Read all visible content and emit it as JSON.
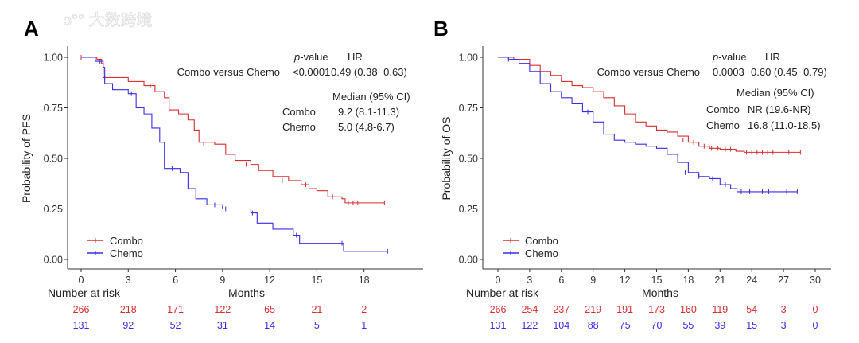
{
  "colors": {
    "combo": "#d62f2f",
    "chemo": "#3a2ee6",
    "axis": "#333333"
  },
  "watermark": "大数跨境",
  "chart_data": [
    {
      "type": "line",
      "subtype": "kaplan-meier",
      "panel_label": "A",
      "ylabel": "Probability of PFS",
      "xlabel": "Months",
      "xticks": [
        "0",
        "3",
        "6",
        "9",
        "12",
        "15",
        "18"
      ],
      "xlim": [
        0,
        21
      ],
      "yticks": [
        "0.00",
        "0.25",
        "0.50",
        "0.75",
        "1.00"
      ],
      "ylim": [
        0,
        1
      ],
      "legend": {
        "placement": "bottom-left",
        "entries": [
          "Combo",
          "Chemo"
        ]
      },
      "annotation": {
        "pvalue_header_prefix": "p",
        "pvalue_header_suffix": "-value",
        "hr_header": "HR",
        "comparison": "Combo versus Chemo",
        "pvalue": "<0.0001",
        "hr": "0.49 (0.38−0.63)",
        "median_header": "Median (95% CI)",
        "rows": [
          {
            "group": "Combo",
            "median": "9.2 (8.1-11.3)"
          },
          {
            "group": "Chemo",
            "median": "5.0 (4.8-6.7)"
          }
        ]
      },
      "risk_table": {
        "title": "Number at risk",
        "combo": [
          "266",
          "218",
          "171",
          "122",
          "65",
          "21",
          "2"
        ],
        "chemo": [
          "131",
          "92",
          "52",
          "31",
          "14",
          "5",
          "1"
        ]
      },
      "series": [
        {
          "name": "Combo",
          "points": [
            [
              0,
              1
            ],
            [
              1.0,
              0.99
            ],
            [
              1.3,
              0.97
            ],
            [
              1.4,
              0.9
            ],
            [
              3,
              0.88
            ],
            [
              4,
              0.86
            ],
            [
              4.7,
              0.83
            ],
            [
              5.3,
              0.8
            ],
            [
              5.6,
              0.74
            ],
            [
              6.2,
              0.72
            ],
            [
              6.8,
              0.69
            ],
            [
              7.2,
              0.64
            ],
            [
              7.5,
              0.58
            ],
            [
              8.5,
              0.57
            ],
            [
              9.2,
              0.52
            ],
            [
              9.8,
              0.49
            ],
            [
              10.8,
              0.47
            ],
            [
              11.3,
              0.44
            ],
            [
              12.2,
              0.41
            ],
            [
              13.2,
              0.39
            ],
            [
              14.0,
              0.37
            ],
            [
              14.5,
              0.35
            ],
            [
              15.0,
              0.34
            ],
            [
              15.7,
              0.31
            ],
            [
              16.6,
              0.3
            ],
            [
              16.8,
              0.28
            ],
            [
              19.3,
              0.28
            ]
          ],
          "censored": [
            [
              0,
              1
            ],
            [
              1.4,
              0.93
            ],
            [
              4.4,
              0.86
            ],
            [
              7.8,
              0.57
            ],
            [
              10.5,
              0.47
            ],
            [
              12.8,
              0.39
            ],
            [
              14.3,
              0.37
            ],
            [
              16.0,
              0.31
            ],
            [
              17.0,
              0.28
            ],
            [
              17.3,
              0.28
            ],
            [
              17.6,
              0.28
            ],
            [
              19.3,
              0.28
            ]
          ]
        },
        {
          "name": "Chemo",
          "points": [
            [
              0,
              1
            ],
            [
              0.9,
              0.98
            ],
            [
              1.4,
              0.95
            ],
            [
              1.5,
              0.87
            ],
            [
              2.0,
              0.84
            ],
            [
              3.0,
              0.82
            ],
            [
              3.5,
              0.75
            ],
            [
              4.0,
              0.72
            ],
            [
              4.5,
              0.65
            ],
            [
              5.0,
              0.58
            ],
            [
              5.3,
              0.45
            ],
            [
              6.3,
              0.43
            ],
            [
              6.8,
              0.35
            ],
            [
              7.3,
              0.3
            ],
            [
              8.0,
              0.27
            ],
            [
              9.0,
              0.25
            ],
            [
              10.8,
              0.23
            ],
            [
              11.2,
              0.18
            ],
            [
              12.2,
              0.15
            ],
            [
              13.5,
              0.12
            ],
            [
              13.9,
              0.08
            ],
            [
              16.6,
              0.08
            ],
            [
              16.7,
              0.04
            ],
            [
              19.5,
              0.04
            ]
          ],
          "censored": [
            [
              1.2,
              0.98
            ],
            [
              1.5,
              0.9
            ],
            [
              3.2,
              0.82
            ],
            [
              5.8,
              0.45
            ],
            [
              8.5,
              0.27
            ],
            [
              9.2,
              0.25
            ],
            [
              10.9,
              0.23
            ],
            [
              13.7,
              0.12
            ],
            [
              16.6,
              0.08
            ],
            [
              19.5,
              0.04
            ]
          ]
        }
      ]
    },
    {
      "type": "line",
      "subtype": "kaplan-meier",
      "panel_label": "B",
      "ylabel": "Probability of OS",
      "xlabel": "Months",
      "xticks": [
        "0",
        "3",
        "6",
        "9",
        "12",
        "15",
        "18",
        "21",
        "24",
        "27",
        "30"
      ],
      "xlim": [
        0,
        31.5
      ],
      "yticks": [
        "0.00",
        "0.25",
        "0.50",
        "0.75",
        "1.00"
      ],
      "ylim": [
        0,
        1
      ],
      "legend": {
        "placement": "bottom-left",
        "entries": [
          "Combo",
          "Chemo"
        ]
      },
      "annotation": {
        "pvalue_header_prefix": "p",
        "pvalue_header_suffix": "-value",
        "hr_header": "HR",
        "comparison": "Combo versus Chemo",
        "pvalue": "0.0003",
        "hr": "0.60 (0.45−0.79)",
        "median_header": "Median (95% CI)",
        "rows": [
          {
            "group": "Combo",
            "median": "NR (19.6-NR)"
          },
          {
            "group": "Chemo",
            "median": "16.8 (11.0-18.5)"
          }
        ]
      },
      "risk_table": {
        "title": "Number at risk",
        "combo": [
          "266",
          "254",
          "237",
          "219",
          "191",
          "173",
          "160",
          "119",
          "54",
          "3",
          "0"
        ],
        "chemo": [
          "131",
          "122",
          "104",
          "88",
          "75",
          "70",
          "55",
          "39",
          "15",
          "3",
          "0"
        ]
      },
      "series": [
        {
          "name": "Combo",
          "points": [
            [
              0,
              1
            ],
            [
              1.5,
              0.99
            ],
            [
              3,
              0.96
            ],
            [
              4,
              0.93
            ],
            [
              5,
              0.91
            ],
            [
              6,
              0.88
            ],
            [
              7,
              0.86
            ],
            [
              8,
              0.85
            ],
            [
              9,
              0.83
            ],
            [
              10,
              0.8
            ],
            [
              11,
              0.76
            ],
            [
              12,
              0.72
            ],
            [
              13,
              0.68
            ],
            [
              14,
              0.66
            ],
            [
              15,
              0.64
            ],
            [
              16,
              0.63
            ],
            [
              17,
              0.61
            ],
            [
              18,
              0.58
            ],
            [
              19,
              0.56
            ],
            [
              20,
              0.55
            ],
            [
              21,
              0.545
            ],
            [
              22.5,
              0.535
            ],
            [
              23.3,
              0.53
            ],
            [
              28.6,
              0.53
            ]
          ],
          "censored": [
            [
              17.5,
              0.59
            ],
            [
              18.5,
              0.58
            ],
            [
              19.5,
              0.56
            ],
            [
              20.2,
              0.55
            ],
            [
              20.8,
              0.55
            ],
            [
              21.5,
              0.545
            ],
            [
              22.0,
              0.545
            ],
            [
              23.5,
              0.53
            ],
            [
              24.0,
              0.53
            ],
            [
              24.5,
              0.53
            ],
            [
              25.0,
              0.53
            ],
            [
              25.5,
              0.53
            ],
            [
              26.0,
              0.53
            ],
            [
              27.5,
              0.53
            ],
            [
              28.6,
              0.53
            ]
          ]
        },
        {
          "name": "Chemo",
          "points": [
            [
              0,
              1
            ],
            [
              1,
              0.99
            ],
            [
              2,
              0.97
            ],
            [
              3,
              0.93
            ],
            [
              4,
              0.87
            ],
            [
              5,
              0.83
            ],
            [
              6,
              0.8
            ],
            [
              7,
              0.77
            ],
            [
              8,
              0.73
            ],
            [
              9,
              0.68
            ],
            [
              10,
              0.62
            ],
            [
              11,
              0.59
            ],
            [
              12,
              0.58
            ],
            [
              13,
              0.57
            ],
            [
              14,
              0.56
            ],
            [
              15,
              0.55
            ],
            [
              16,
              0.52
            ],
            [
              17,
              0.48
            ],
            [
              18,
              0.43
            ],
            [
              19,
              0.41
            ],
            [
              20,
              0.4
            ],
            [
              21,
              0.37
            ],
            [
              22,
              0.35
            ],
            [
              22.6,
              0.335
            ],
            [
              28.3,
              0.335
            ]
          ],
          "censored": [
            [
              1,
              0.99
            ],
            [
              8.5,
              0.73
            ],
            [
              17.7,
              0.43
            ],
            [
              19.0,
              0.41
            ],
            [
              20.3,
              0.4
            ],
            [
              21.5,
              0.37
            ],
            [
              23.0,
              0.335
            ],
            [
              23.8,
              0.335
            ],
            [
              25.0,
              0.335
            ],
            [
              25.6,
              0.335
            ],
            [
              26.2,
              0.335
            ],
            [
              27.3,
              0.335
            ],
            [
              28.3,
              0.335
            ]
          ]
        }
      ]
    }
  ]
}
